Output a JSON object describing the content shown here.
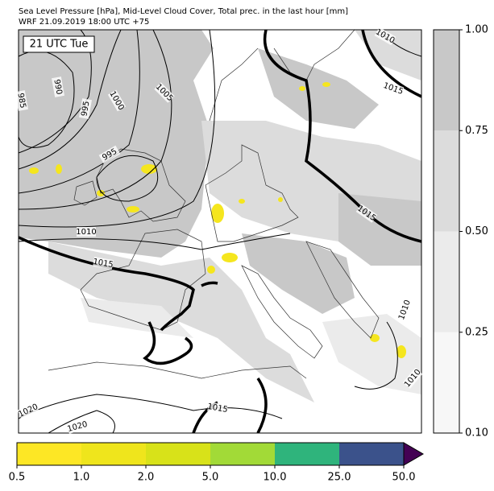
{
  "title": [
    "Sea Level Pressure [hPa], Mid-Level Cloud Cover, Total prec. in the last hour [mm]",
    "WRF 21.09.2019 18:00 UTC +75"
  ],
  "time_label": "21 UTC Tue",
  "isobar_labels": [
    "985",
    "990",
    "995",
    "1000",
    "1005",
    "995",
    "1010",
    "1015",
    "1015",
    "1015",
    "1010",
    "1010",
    "1010",
    "1020",
    "1020",
    "1015"
  ],
  "cloud_cover_colorbar": {
    "ticks": [
      {
        "value": 0.1,
        "label": "0.10"
      },
      {
        "value": 0.25,
        "label": "0.25"
      },
      {
        "value": 0.5,
        "label": "0.50"
      },
      {
        "value": 0.75,
        "label": "0.75"
      },
      {
        "value": 1.0,
        "label": "1.00"
      }
    ],
    "colors": [
      "#f7f7f7",
      "#ebebeb",
      "#dcdcdc",
      "#c8c8c8"
    ]
  },
  "precip_colorbar": {
    "ticks": [
      0.5,
      {
        "value": 1.0,
        "label": "1.0"
      },
      {
        "value": 2.0,
        "label": "2.0"
      },
      {
        "value": 5.0,
        "label": "5.0"
      },
      {
        "value": 10.0,
        "label": "10.0"
      },
      {
        "value": 25.0,
        "label": "25.0"
      },
      {
        "value": 50.0,
        "label": "50.0"
      }
    ],
    "colors": [
      "#fde725",
      "#efe51c",
      "#d8e219",
      "#a2da37",
      "#2fb47c",
      "#3b528b"
    ],
    "extend_color": "#440154"
  }
}
